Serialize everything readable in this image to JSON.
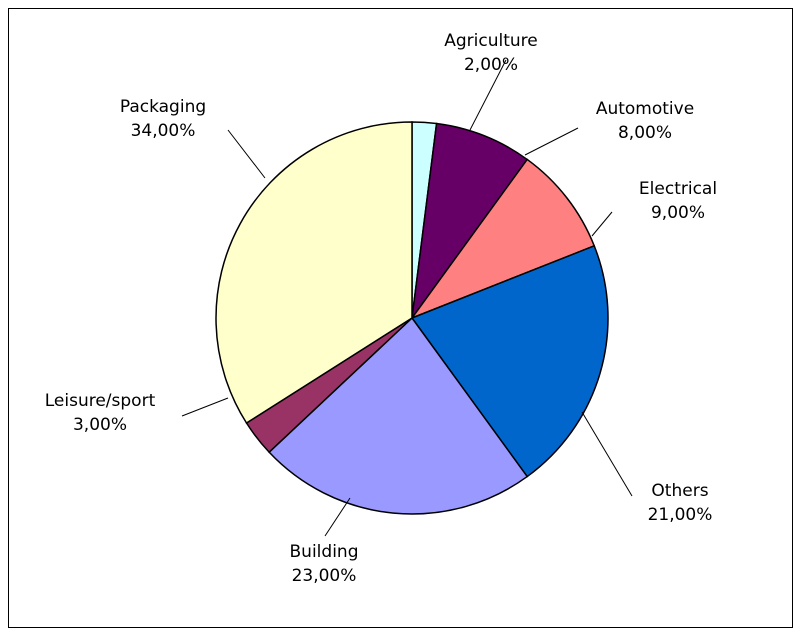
{
  "chart_data": {
    "type": "pie",
    "categories": [
      "Agriculture",
      "Automotive",
      "Electrical",
      "Others",
      "Building",
      "Leisure/sport",
      "Packaging"
    ],
    "values": [
      2.0,
      8.0,
      9.0,
      21.0,
      23.0,
      3.0,
      34.0
    ],
    "value_labels": [
      "2,00%",
      "8,00%",
      "9,00%",
      "21,00%",
      "23,00%",
      "3,00%",
      "34,00%"
    ],
    "colors": [
      "#CCFFFF",
      "#660066",
      "#FF8080",
      "#0066CC",
      "#9999FF",
      "#993366",
      "#FFFFCC"
    ],
    "start": "top, clockwise",
    "legend": "none"
  }
}
